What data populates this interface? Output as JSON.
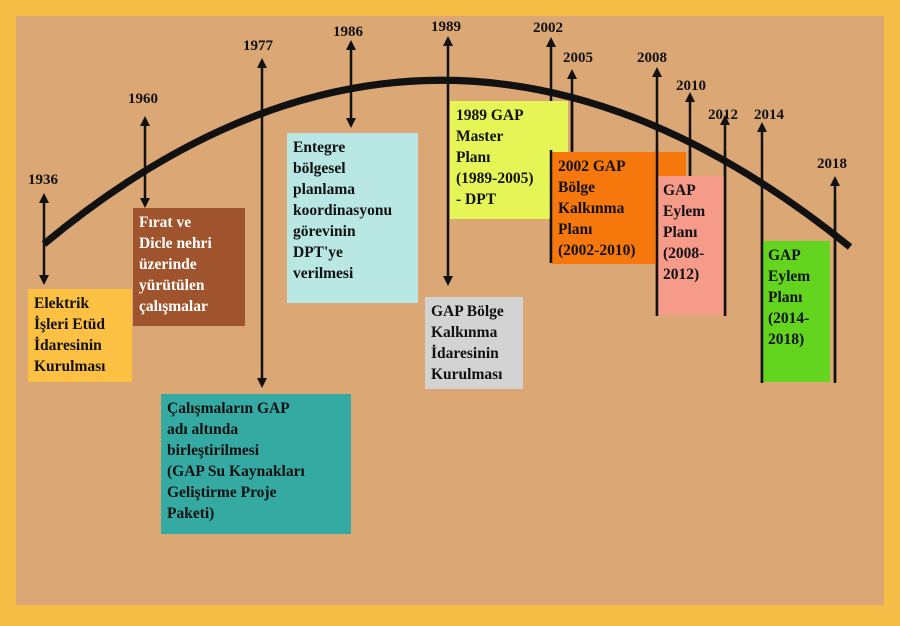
{
  "colors": {
    "border": "#f5bd45",
    "background": "#dba774",
    "line": "#111111"
  },
  "years": {
    "y1936": "1936",
    "y1960": "1960",
    "y1977": "1977",
    "y1986": "1986",
    "y1989": "1989",
    "y2002": "2002",
    "y2005": "2005",
    "y2008": "2008",
    "y2010": "2010",
    "y2012": "2012",
    "y2014": "2014",
    "y2018": "2018"
  },
  "events": {
    "e1936": "Elektrik\nİşleri Etüd\nİdaresinin\nKurulması",
    "e1960": "Fırat ve\nDicle nehri\nüzerinde\nyürütülen\nçalışmalar",
    "e1977": "Çalışmaların GAP\nadı altında\nbirleştirilmesi\n(GAP Su Kaynakları\nGeliştirme Proje\nPaketi)",
    "e1986": "Entegre\nbölgesel\nplanlama\nkoordinasyonu\ngörevinin\nDPT'ye\nverilmesi",
    "e1989": "GAP Bölge\nKalkınma\nİdaresinin\nKurulması",
    "e1989master": "1989 GAP\nMaster\nPlanı\n(1989-2005)\n- DPT",
    "e2002": "2002 GAP\nBölge\nKalkınma\nPlanı\n(2002-2010)",
    "e2008": "GAP\nEylem\nPlanı\n(2008-\n2012)",
    "e2014": "GAP\nEylem\nPlanı\n(2014-\n2018)"
  },
  "box_colors": {
    "e1936": "#fcc142",
    "e1960": "#a0542d",
    "e1977": "#35aaa3",
    "e1986": "#b8e7e4",
    "e1989": "#d3d3d3",
    "e1989master": "#e5f555",
    "e2002": "#f6780c",
    "e2008": "#f69a8a",
    "e2014": "#64d51f"
  }
}
